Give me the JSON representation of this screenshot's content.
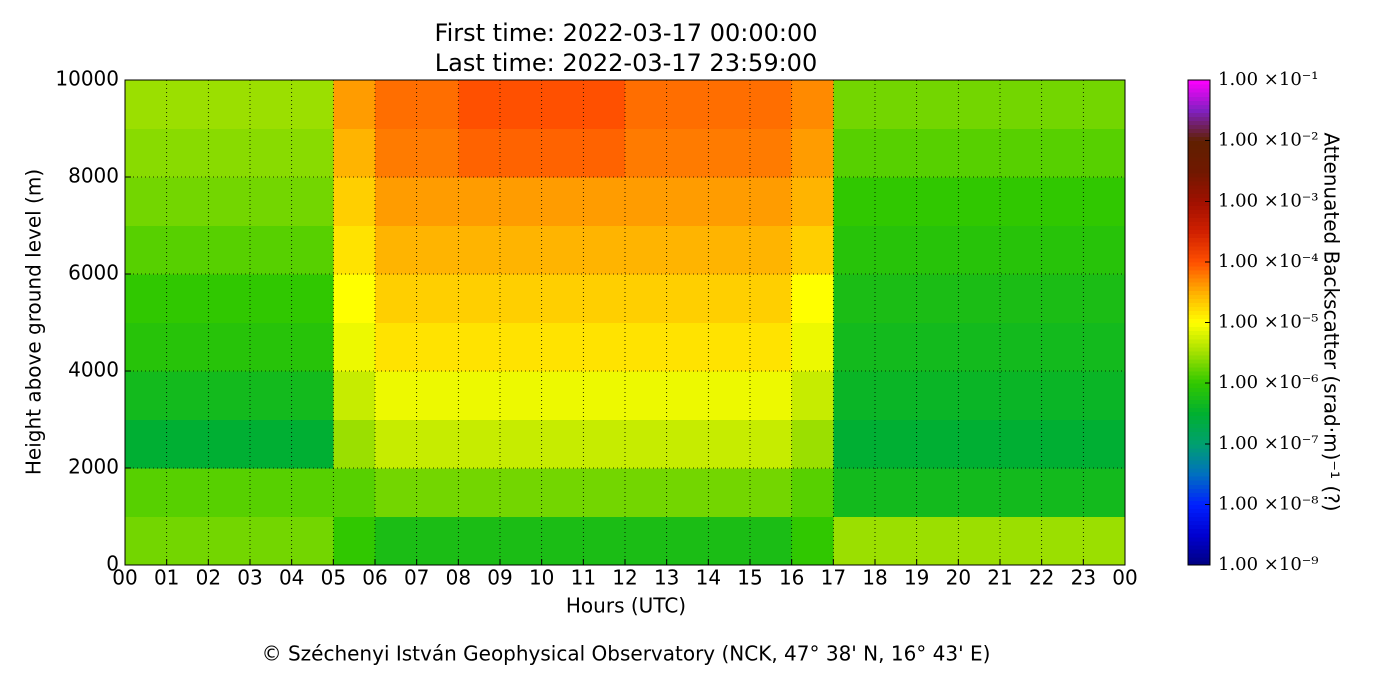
{
  "chart_data": {
    "type": "heatmap",
    "title": "First time: 2022-03-17 00:00:00",
    "subtitle": "Last time: 2022-03-17 23:59:00",
    "xlabel": "Hours (UTC)",
    "ylabel": "Height above ground level (m)",
    "colorbar_label": "Attenuated Backscatter (srad·m)⁻¹ (?)",
    "source": "© Széchenyi István Geophysical Observatory (NCK, 47° 38' N, 16° 43' E)",
    "xlim": [
      0,
      24
    ],
    "ylim": [
      0,
      10000
    ],
    "xticks": [
      {
        "value": 0,
        "label": "00"
      },
      {
        "value": 1,
        "label": "01"
      },
      {
        "value": 2,
        "label": "02"
      },
      {
        "value": 3,
        "label": "03"
      },
      {
        "value": 4,
        "label": "04"
      },
      {
        "value": 5,
        "label": "05"
      },
      {
        "value": 6,
        "label": "06"
      },
      {
        "value": 7,
        "label": "07"
      },
      {
        "value": 8,
        "label": "08"
      },
      {
        "value": 9,
        "label": "09"
      },
      10,
      11,
      12,
      13,
      14,
      15,
      16,
      17,
      18,
      19,
      20,
      21,
      22,
      23,
      {
        "value": 24,
        "label": "00"
      }
    ],
    "yticks": [
      0,
      2000,
      4000,
      6000,
      8000,
      10000
    ],
    "grid": true,
    "xbins": [
      0,
      1,
      2,
      3,
      4,
      5,
      6,
      7,
      8,
      9,
      10,
      11,
      12,
      13,
      14,
      15,
      16,
      17,
      18,
      19,
      20,
      21,
      22,
      23,
      24
    ],
    "ybins": [
      0,
      1000,
      2000,
      3000,
      4000,
      5000,
      6000,
      7000,
      8000,
      9000,
      10000
    ],
    "z": [
      [
        2e-06,
        2e-06,
        2e-06,
        2e-06,
        2e-06,
        1e-06,
        6e-07,
        6e-07,
        6e-07,
        6e-07,
        6e-07,
        6e-07,
        6e-07,
        6e-07,
        6e-07,
        6e-07,
        1e-06,
        3e-06,
        3e-06,
        3e-06,
        3e-06,
        3e-06,
        3e-06,
        3e-06
      ],
      [
        1.5e-06,
        1.5e-06,
        1.5e-06,
        1.5e-06,
        1.5e-06,
        1.5e-06,
        2e-06,
        2e-06,
        2e-06,
        2e-06,
        2e-06,
        2e-06,
        2e-06,
        2e-06,
        2e-06,
        2e-06,
        1.5e-06,
        5e-07,
        5e-07,
        5e-07,
        5e-07,
        5e-07,
        5e-07,
        5e-07
      ],
      [
        3e-07,
        3e-07,
        3e-07,
        3e-07,
        3e-07,
        3e-06,
        5e-06,
        5e-06,
        5e-06,
        5e-06,
        5e-06,
        5e-06,
        5e-06,
        5e-06,
        5e-06,
        5e-06,
        3e-06,
        3e-07,
        3e-07,
        3e-07,
        3e-07,
        3e-07,
        3e-07,
        3e-07
      ],
      [
        5e-07,
        5e-07,
        5e-07,
        5e-07,
        5e-07,
        5e-06,
        8e-06,
        8e-06,
        8e-06,
        8e-06,
        8e-06,
        8e-06,
        8e-06,
        8e-06,
        8e-06,
        8e-06,
        5e-06,
        4e-07,
        4e-07,
        4e-07,
        4e-07,
        4e-07,
        4e-07,
        4e-07
      ],
      [
        8e-07,
        8e-07,
        8e-07,
        8e-07,
        8e-07,
        8e-06,
        1.5e-05,
        1.5e-05,
        1.5e-05,
        1.5e-05,
        1.5e-05,
        1.5e-05,
        1.5e-05,
        1.5e-05,
        1.5e-05,
        1.5e-05,
        8e-06,
        5e-07,
        5e-07,
        5e-07,
        5e-07,
        5e-07,
        5e-07,
        5e-07
      ],
      [
        1e-06,
        1e-06,
        1e-06,
        1e-06,
        1e-06,
        1e-05,
        2e-05,
        2e-05,
        2e-05,
        2e-05,
        2e-05,
        2e-05,
        2e-05,
        2e-05,
        2e-05,
        2e-05,
        1e-05,
        6e-07,
        6e-07,
        6e-07,
        6e-07,
        6e-07,
        6e-07,
        6e-07
      ],
      [
        1.5e-06,
        1.5e-06,
        1.5e-06,
        1.5e-06,
        1.5e-06,
        1.5e-05,
        3e-05,
        3e-05,
        3e-05,
        3e-05,
        3e-05,
        3e-05,
        3e-05,
        3e-05,
        3e-05,
        3e-05,
        2e-05,
        8e-07,
        8e-07,
        8e-07,
        8e-07,
        8e-07,
        8e-07,
        8e-07
      ],
      [
        2e-06,
        2e-06,
        2e-06,
        2e-06,
        2e-06,
        2e-05,
        4e-05,
        4e-05,
        4e-05,
        4e-05,
        4e-05,
        4e-05,
        4e-05,
        4e-05,
        4e-05,
        4e-05,
        3e-05,
        1e-06,
        1e-06,
        1e-06,
        1e-06,
        1e-06,
        1e-06,
        1e-06
      ],
      [
        2.5e-06,
        2.5e-06,
        2.5e-06,
        2.5e-06,
        2.5e-06,
        3e-05,
        6e-05,
        6e-05,
        8e-05,
        8e-05,
        8e-05,
        8e-05,
        6e-05,
        6e-05,
        6e-05,
        6e-05,
        4e-05,
        1.5e-06,
        1.5e-06,
        1.5e-06,
        1.5e-06,
        1.5e-06,
        1.5e-06,
        1.5e-06
      ],
      [
        3e-06,
        3e-06,
        3e-06,
        3e-06,
        3e-06,
        4e-05,
        7e-05,
        7e-05,
        0.0001,
        0.0001,
        0.0001,
        0.0001,
        7e-05,
        7e-05,
        7e-05,
        7e-05,
        5e-05,
        2e-06,
        2e-06,
        2e-06,
        2e-06,
        2e-06,
        2e-06,
        2e-06
      ]
    ],
    "clim": [
      1e-09,
      0.1
    ],
    "clog": true,
    "cticks": [
      {
        "value": 1e-09,
        "label": "1.00 ×10⁻⁹"
      },
      {
        "value": 1e-08,
        "label": "1.00 ×10⁻⁸"
      },
      {
        "value": 1e-07,
        "label": "1.00 ×10⁻⁷"
      },
      {
        "value": 1e-06,
        "label": "1.00 ×10⁻⁶"
      },
      {
        "value": 1e-05,
        "label": "1.00 ×10⁻⁵"
      },
      {
        "value": 0.0001,
        "label": "1.00 ×10⁻⁴"
      },
      {
        "value": 0.001,
        "label": "1.00 ×10⁻³"
      },
      {
        "value": 0.01,
        "label": "1.00 ×10⁻²"
      },
      {
        "value": 0.1,
        "label": "1.00 ×10⁻¹"
      }
    ],
    "colorscale": [
      "#000080",
      "#0000d0",
      "#0020ff",
      "#0070c0",
      "#00a070",
      "#00b030",
      "#30c800",
      "#a0e000",
      "#ffff00",
      "#ffb000",
      "#ff5000",
      "#d02000",
      "#a01000",
      "#701800",
      "#602000",
      "#8020c0",
      "#ff00ff"
    ]
  }
}
